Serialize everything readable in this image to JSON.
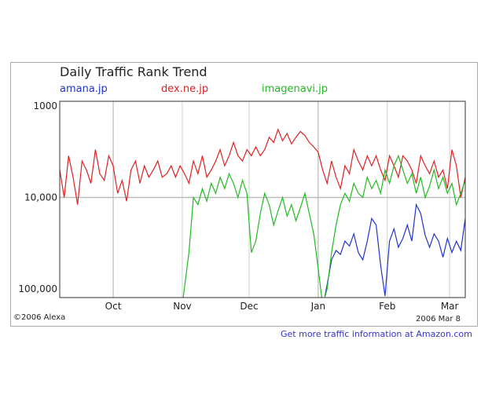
{
  "chart_data": {
    "type": "line",
    "title": "Daily Traffic Rank Trend",
    "y_scale": "log-reversed",
    "ylim": [
      100000,
      1000
    ],
    "y_ticks": [
      "1000",
      "10,000",
      "100,000"
    ],
    "y_tick_values": [
      1000,
      10000,
      100000
    ],
    "x_ticks": [
      "Oct",
      "Nov",
      "Dec",
      "Jan",
      "Feb",
      "Mar"
    ],
    "x_tick_dates": [
      "2005-10-01",
      "2005-11-01",
      "2005-12-01",
      "2006-01-01",
      "2006-02-01",
      "2006-03-01"
    ],
    "xlim": [
      "2005-09-07",
      "2006-03-08"
    ],
    "grid": true,
    "legend_position": "top",
    "series": [
      {
        "name": "amana.jp",
        "color": "#2233cc",
        "points": [
          [
            "2006-01-04",
            120000
          ],
          [
            "2006-01-05",
            90000
          ],
          [
            "2006-01-07",
            48000
          ],
          [
            "2006-01-09",
            38000
          ],
          [
            "2006-01-11",
            42000
          ],
          [
            "2006-01-13",
            30000
          ],
          [
            "2006-01-15",
            34000
          ],
          [
            "2006-01-17",
            25000
          ],
          [
            "2006-01-19",
            40000
          ],
          [
            "2006-01-21",
            48000
          ],
          [
            "2006-01-23",
            30000
          ],
          [
            "2006-01-25",
            17000
          ],
          [
            "2006-01-27",
            20000
          ],
          [
            "2006-01-29",
            55000
          ],
          [
            "2006-01-31",
            120000
          ],
          [
            "2006-02-02",
            30000
          ],
          [
            "2006-02-04",
            22000
          ],
          [
            "2006-02-06",
            35000
          ],
          [
            "2006-02-08",
            28000
          ],
          [
            "2006-02-10",
            20000
          ],
          [
            "2006-02-12",
            30000
          ],
          [
            "2006-02-14",
            12000
          ],
          [
            "2006-02-16",
            15000
          ],
          [
            "2006-02-18",
            26000
          ],
          [
            "2006-02-20",
            35000
          ],
          [
            "2006-02-22",
            25000
          ],
          [
            "2006-02-24",
            30000
          ],
          [
            "2006-02-26",
            45000
          ],
          [
            "2006-02-28",
            28000
          ],
          [
            "2006-03-02",
            40000
          ],
          [
            "2006-03-04",
            30000
          ],
          [
            "2006-03-06",
            38000
          ],
          [
            "2006-03-08",
            17000
          ]
        ]
      },
      {
        "name": "dex.ne.jp",
        "color": "#dd2222",
        "points": [
          [
            "2005-09-07",
            5000
          ],
          [
            "2005-09-09",
            10000
          ],
          [
            "2005-09-11",
            3500
          ],
          [
            "2005-09-13",
            6000
          ],
          [
            "2005-09-15",
            12000
          ],
          [
            "2005-09-17",
            4000
          ],
          [
            "2005-09-19",
            5000
          ],
          [
            "2005-09-21",
            7000
          ],
          [
            "2005-09-23",
            3000
          ],
          [
            "2005-09-25",
            5500
          ],
          [
            "2005-09-27",
            6500
          ],
          [
            "2005-09-29",
            3500
          ],
          [
            "2005-10-01",
            4500
          ],
          [
            "2005-10-03",
            9000
          ],
          [
            "2005-10-05",
            6500
          ],
          [
            "2005-10-07",
            11000
          ],
          [
            "2005-10-09",
            5000
          ],
          [
            "2005-10-11",
            4000
          ],
          [
            "2005-10-13",
            7000
          ],
          [
            "2005-10-15",
            4500
          ],
          [
            "2005-10-17",
            6000
          ],
          [
            "2005-10-19",
            5000
          ],
          [
            "2005-10-21",
            4000
          ],
          [
            "2005-10-23",
            6000
          ],
          [
            "2005-10-25",
            5500
          ],
          [
            "2005-10-27",
            4500
          ],
          [
            "2005-10-29",
            6000
          ],
          [
            "2005-10-31",
            4500
          ],
          [
            "2005-11-02",
            5500
          ],
          [
            "2005-11-04",
            7000
          ],
          [
            "2005-11-06",
            4000
          ],
          [
            "2005-11-08",
            5500
          ],
          [
            "2005-11-10",
            3500
          ],
          [
            "2005-11-12",
            6000
          ],
          [
            "2005-11-14",
            5000
          ],
          [
            "2005-11-16",
            4000
          ],
          [
            "2005-11-18",
            3000
          ],
          [
            "2005-11-20",
            4500
          ],
          [
            "2005-11-22",
            3500
          ],
          [
            "2005-11-24",
            2500
          ],
          [
            "2005-11-26",
            3500
          ],
          [
            "2005-11-28",
            4000
          ],
          [
            "2005-11-30",
            3000
          ],
          [
            "2005-12-02",
            3500
          ],
          [
            "2005-12-04",
            2800
          ],
          [
            "2005-12-06",
            3500
          ],
          [
            "2005-12-08",
            3000
          ],
          [
            "2005-12-10",
            2200
          ],
          [
            "2005-12-12",
            2500
          ],
          [
            "2005-12-14",
            1800
          ],
          [
            "2005-12-16",
            2400
          ],
          [
            "2005-12-18",
            2000
          ],
          [
            "2005-12-20",
            2600
          ],
          [
            "2005-12-22",
            2200
          ],
          [
            "2005-12-24",
            1900
          ],
          [
            "2005-12-26",
            2100
          ],
          [
            "2005-12-28",
            2500
          ],
          [
            "2005-12-30",
            2800
          ],
          [
            "2006-01-01",
            3200
          ],
          [
            "2006-01-03",
            5000
          ],
          [
            "2006-01-05",
            7000
          ],
          [
            "2006-01-07",
            4000
          ],
          [
            "2006-01-09",
            6000
          ],
          [
            "2006-01-11",
            8000
          ],
          [
            "2006-01-13",
            4500
          ],
          [
            "2006-01-15",
            5500
          ],
          [
            "2006-01-17",
            3000
          ],
          [
            "2006-01-19",
            4000
          ],
          [
            "2006-01-21",
            5000
          ],
          [
            "2006-01-23",
            3500
          ],
          [
            "2006-01-25",
            4500
          ],
          [
            "2006-01-27",
            3500
          ],
          [
            "2006-01-29",
            5000
          ],
          [
            "2006-01-31",
            6500
          ],
          [
            "2006-02-02",
            3500
          ],
          [
            "2006-02-04",
            4500
          ],
          [
            "2006-02-06",
            6000
          ],
          [
            "2006-02-08",
            3500
          ],
          [
            "2006-02-10",
            4000
          ],
          [
            "2006-02-12",
            5000
          ],
          [
            "2006-02-14",
            7000
          ],
          [
            "2006-02-16",
            3500
          ],
          [
            "2006-02-18",
            4500
          ],
          [
            "2006-02-20",
            5500
          ],
          [
            "2006-02-22",
            4000
          ],
          [
            "2006-02-24",
            6000
          ],
          [
            "2006-02-26",
            5000
          ],
          [
            "2006-02-28",
            8000
          ],
          [
            "2006-03-02",
            3000
          ],
          [
            "2006-03-04",
            4500
          ],
          [
            "2006-03-06",
            10000
          ],
          [
            "2006-03-08",
            6000
          ]
        ]
      },
      {
        "name": "imagenavi.jp",
        "color": "#22bb22",
        "points": [
          [
            "2005-11-01",
            150000
          ],
          [
            "2005-11-04",
            40000
          ],
          [
            "2005-11-05",
            20000
          ],
          [
            "2005-11-06",
            10000
          ],
          [
            "2005-11-08",
            12000
          ],
          [
            "2005-11-10",
            8000
          ],
          [
            "2005-11-12",
            11000
          ],
          [
            "2005-11-14",
            7000
          ],
          [
            "2005-11-16",
            9000
          ],
          [
            "2005-11-18",
            6000
          ],
          [
            "2005-11-20",
            8000
          ],
          [
            "2005-11-22",
            5500
          ],
          [
            "2005-11-24",
            7000
          ],
          [
            "2005-11-26",
            10000
          ],
          [
            "2005-11-28",
            6500
          ],
          [
            "2005-11-30",
            9000
          ],
          [
            "2005-12-02",
            40000
          ],
          [
            "2005-12-04",
            30000
          ],
          [
            "2005-12-06",
            15000
          ],
          [
            "2005-12-08",
            9000
          ],
          [
            "2005-12-10",
            12000
          ],
          [
            "2005-12-12",
            20000
          ],
          [
            "2005-12-14",
            14000
          ],
          [
            "2005-12-16",
            10000
          ],
          [
            "2005-12-18",
            16000
          ],
          [
            "2005-12-20",
            12000
          ],
          [
            "2005-12-22",
            18000
          ],
          [
            "2005-12-24",
            13000
          ],
          [
            "2005-12-26",
            9000
          ],
          [
            "2005-12-28",
            15000
          ],
          [
            "2005-12-30",
            25000
          ],
          [
            "2006-01-01",
            60000
          ],
          [
            "2006-01-03",
            150000
          ],
          [
            "2006-01-05",
            100000
          ],
          [
            "2006-01-07",
            40000
          ],
          [
            "2006-01-09",
            20000
          ],
          [
            "2006-01-11",
            12000
          ],
          [
            "2006-01-13",
            9000
          ],
          [
            "2006-01-15",
            11000
          ],
          [
            "2006-01-17",
            7000
          ],
          [
            "2006-01-19",
            9000
          ],
          [
            "2006-01-21",
            10000
          ],
          [
            "2006-01-23",
            6000
          ],
          [
            "2006-01-25",
            8000
          ],
          [
            "2006-01-27",
            6500
          ],
          [
            "2006-01-29",
            9000
          ],
          [
            "2006-01-31",
            5000
          ],
          [
            "2006-02-02",
            7000
          ],
          [
            "2006-02-04",
            4500
          ],
          [
            "2006-02-06",
            3500
          ],
          [
            "2006-02-08",
            5000
          ],
          [
            "2006-02-10",
            7000
          ],
          [
            "2006-02-12",
            5500
          ],
          [
            "2006-02-14",
            9000
          ],
          [
            "2006-02-16",
            6000
          ],
          [
            "2006-02-18",
            10000
          ],
          [
            "2006-02-20",
            7500
          ],
          [
            "2006-02-22",
            5000
          ],
          [
            "2006-02-24",
            8000
          ],
          [
            "2006-02-26",
            6000
          ],
          [
            "2006-02-28",
            9000
          ],
          [
            "2006-03-02",
            7000
          ],
          [
            "2006-03-04",
            12000
          ],
          [
            "2006-03-06",
            9000
          ],
          [
            "2006-03-08",
            6500
          ]
        ]
      }
    ]
  },
  "copyright": "©2006 Alexa",
  "date_label": "2006 Mar 8",
  "amazon_link": "Get more traffic information at Amazon.com"
}
